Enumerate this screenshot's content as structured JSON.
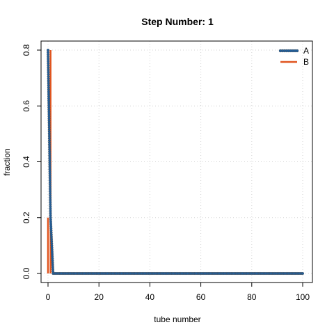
{
  "chart_data": {
    "type": "line",
    "title": "Step Number:  1",
    "xlabel": "tube number",
    "ylabel": "fraction",
    "xlim": [
      0,
      100
    ],
    "ylim": [
      0,
      0.8
    ],
    "xticks": [
      "0",
      "20",
      "40",
      "60",
      "80",
      "100"
    ],
    "yticks": [
      "0.0",
      "0.2",
      "0.4",
      "0.6",
      "0.8"
    ],
    "grid": true,
    "legend_position": "top-right",
    "series": [
      {
        "name": "A",
        "color": "#1f5f9e",
        "style": "points-and-lines",
        "x": [
          0,
          1,
          2,
          3,
          4,
          5,
          6,
          7,
          8,
          9,
          10,
          11,
          12,
          13,
          14,
          15,
          16,
          17,
          18,
          19,
          20,
          21,
          22,
          23,
          24,
          25,
          26,
          27,
          28,
          29,
          30,
          31,
          32,
          33,
          34,
          35,
          36,
          37,
          38,
          39,
          40,
          41,
          42,
          43,
          44,
          45,
          46,
          47,
          48,
          49,
          50,
          51,
          52,
          53,
          54,
          55,
          56,
          57,
          58,
          59,
          60,
          61,
          62,
          63,
          64,
          65,
          66,
          67,
          68,
          69,
          70,
          71,
          72,
          73,
          74,
          75,
          76,
          77,
          78,
          79,
          80,
          81,
          82,
          83,
          84,
          85,
          86,
          87,
          88,
          89,
          90,
          91,
          92,
          93,
          94,
          95,
          96,
          97,
          98,
          99,
          100
        ],
        "values": [
          0.8,
          0.2,
          0,
          0,
          0,
          0,
          0,
          0,
          0,
          0,
          0,
          0,
          0,
          0,
          0,
          0,
          0,
          0,
          0,
          0,
          0,
          0,
          0,
          0,
          0,
          0,
          0,
          0,
          0,
          0,
          0,
          0,
          0,
          0,
          0,
          0,
          0,
          0,
          0,
          0,
          0,
          0,
          0,
          0,
          0,
          0,
          0,
          0,
          0,
          0,
          0,
          0,
          0,
          0,
          0,
          0,
          0,
          0,
          0,
          0,
          0,
          0,
          0,
          0,
          0,
          0,
          0,
          0,
          0,
          0,
          0,
          0,
          0,
          0,
          0,
          0,
          0,
          0,
          0,
          0,
          0,
          0,
          0,
          0,
          0,
          0,
          0,
          0,
          0,
          0,
          0,
          0,
          0,
          0,
          0,
          0,
          0,
          0,
          0,
          0,
          0
        ]
      },
      {
        "name": "B",
        "color": "#e0541e",
        "style": "histogram",
        "x": [
          0,
          1,
          2,
          3,
          4,
          5,
          6,
          7,
          8,
          9,
          10,
          11,
          12,
          13,
          14,
          15,
          16,
          17,
          18,
          19,
          20,
          21,
          22,
          23,
          24,
          25,
          26,
          27,
          28,
          29,
          30,
          31,
          32,
          33,
          34,
          35,
          36,
          37,
          38,
          39,
          40,
          41,
          42,
          43,
          44,
          45,
          46,
          47,
          48,
          49,
          50,
          51,
          52,
          53,
          54,
          55,
          56,
          57,
          58,
          59,
          60,
          61,
          62,
          63,
          64,
          65,
          66,
          67,
          68,
          69,
          70,
          71,
          72,
          73,
          74,
          75,
          76,
          77,
          78,
          79,
          80,
          81,
          82,
          83,
          84,
          85,
          86,
          87,
          88,
          89,
          90,
          91,
          92,
          93,
          94,
          95,
          96,
          97,
          98,
          99,
          100
        ],
        "values": [
          0.2,
          0.8,
          0,
          0,
          0,
          0,
          0,
          0,
          0,
          0,
          0,
          0,
          0,
          0,
          0,
          0,
          0,
          0,
          0,
          0,
          0,
          0,
          0,
          0,
          0,
          0,
          0,
          0,
          0,
          0,
          0,
          0,
          0,
          0,
          0,
          0,
          0,
          0,
          0,
          0,
          0,
          0,
          0,
          0,
          0,
          0,
          0,
          0,
          0,
          0,
          0,
          0,
          0,
          0,
          0,
          0,
          0,
          0,
          0,
          0,
          0,
          0,
          0,
          0,
          0,
          0,
          0,
          0,
          0,
          0,
          0,
          0,
          0,
          0,
          0,
          0,
          0,
          0,
          0,
          0,
          0,
          0,
          0,
          0,
          0,
          0,
          0,
          0,
          0,
          0,
          0,
          0,
          0,
          0,
          0,
          0,
          0,
          0,
          0,
          0,
          0
        ]
      }
    ]
  }
}
